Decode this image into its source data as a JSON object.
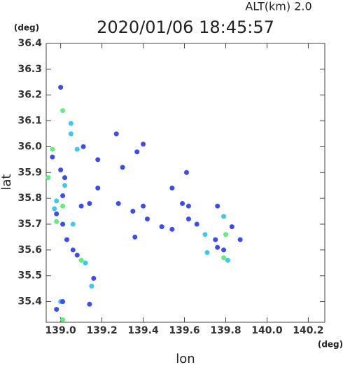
{
  "chart_data": {
    "type": "scatter",
    "title": "2020/01/06 18:45:57",
    "subtitle": "ALT(km)  2.0",
    "x_label": "lon",
    "y_label": "lat",
    "x_unit": "(deg)",
    "y_unit": "(deg)",
    "xlim": [
      138.93,
      140.28
    ],
    "ylim": [
      35.32,
      36.4
    ],
    "xticks": [
      {
        "value": 139.0,
        "label": "139.0"
      },
      139.2,
      139.4,
      139.6,
      139.8,
      {
        "value": 140.0,
        "label": "140.0"
      },
      140.2
    ],
    "yticks": [
      35.4,
      35.5,
      35.6,
      35.7,
      35.8,
      35.9,
      {
        "value": 36.0,
        "label": "36.0"
      },
      36.1,
      36.2,
      36.3,
      36.4
    ],
    "x": [
      139.0,
      139.01,
      139.05,
      139.05,
      138.96,
      138.96,
      139.0,
      139.11,
      139.08,
      139.02,
      139.02,
      138.94,
      139.01,
      138.98,
      138.97,
      138.98,
      139.01,
      138.98,
      139.01,
      139.06,
      139.03,
      139.06,
      139.08,
      139.1,
      139.12,
      139.16,
      139.15,
      139.14,
      139.0,
      139.01,
      138.98,
      139.01,
      139.14,
      139.1,
      139.27,
      139.4,
      139.37,
      139.3,
      139.18,
      139.18,
      139.28,
      139.4,
      139.35,
      139.42,
      139.49,
      139.36,
      139.54,
      139.54,
      139.61,
      139.59,
      139.62,
      139.62,
      139.66,
      139.7,
      139.76,
      139.79,
      139.75,
      139.76,
      139.71,
      139.79,
      139.81,
      139.83,
      139.8,
      139.87,
      139.79
    ],
    "y": [
      36.23,
      36.14,
      36.09,
      36.05,
      35.99,
      35.96,
      35.91,
      36.0,
      35.99,
      35.88,
      35.85,
      35.88,
      35.81,
      35.79,
      35.76,
      35.74,
      35.77,
      35.71,
      35.7,
      35.7,
      35.64,
      35.6,
      35.58,
      35.56,
      35.55,
      35.49,
      35.46,
      35.39,
      35.4,
      35.4,
      35.37,
      35.33,
      35.78,
      35.77,
      36.05,
      36.01,
      35.98,
      35.92,
      35.84,
      35.95,
      35.78,
      35.77,
      35.75,
      35.72,
      35.69,
      35.65,
      35.68,
      35.84,
      35.9,
      35.78,
      35.77,
      35.72,
      35.7,
      35.66,
      35.77,
      35.73,
      35.64,
      35.61,
      35.59,
      35.57,
      35.56,
      35.69,
      35.66,
      35.64,
      35.6
    ],
    "colors": [
      "#3a4cf2",
      "#5ef07a",
      "#3cc8f0",
      "#3cc8f0",
      "#5ef07a",
      "#3a4cf2",
      "#3a4cf2",
      "#3a4cf2",
      "#3cc8f0",
      "#3a4cf2",
      "#3cc8f0",
      "#5ef07a",
      "#3a4cf2",
      "#3cc8f0",
      "#3cc8f0",
      "#3a4cf2",
      "#5ef07a",
      "#5ef07a",
      "#3a4cf2",
      "#3cc8f0",
      "#3a4cf2",
      "#3a4cf2",
      "#3a4cf2",
      "#5ef07a",
      "#3cc8f0",
      "#3a4cf2",
      "#3cc8f0",
      "#3a4cf2",
      "#3cc8f0",
      "#3a4cf2",
      "#3a4cf2",
      "#5ef07a",
      "#3a4cf2",
      "#3a4cf2",
      "#3a4cf2",
      "#3a4cf2",
      "#3a4cf2",
      "#3a4cf2",
      "#3a4cf2",
      "#3a4cf2",
      "#3a4cf2",
      "#3a4cf2",
      "#3a4cf2",
      "#3a4cf2",
      "#3a4cf2",
      "#3a4cf2",
      "#3a4cf2",
      "#3a4cf2",
      "#3a4cf2",
      "#3a4cf2",
      "#3a4cf2",
      "#3a4cf2",
      "#3a4cf2",
      "#3cc8f0",
      "#3a4cf2",
      "#3cc8f0",
      "#3a4cf2",
      "#3a4cf2",
      "#3cc8f0",
      "#5ef07a",
      "#3cc8f0",
      "#3a4cf2",
      "#5ef07a",
      "#3a4cf2",
      "#3a4cf2"
    ]
  }
}
